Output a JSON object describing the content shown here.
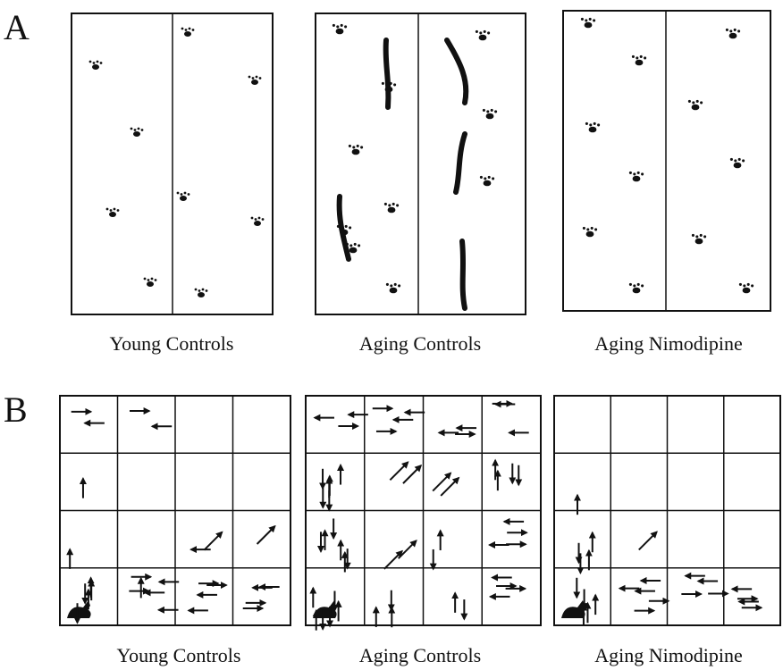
{
  "panels": [
    {
      "label": "A",
      "captions": [
        "Young Controls",
        "Aging Controls",
        "Aging Nimodipine"
      ]
    },
    {
      "label": "B",
      "captions": [
        "Young Controls",
        "Aging Controls",
        "Aging Nimodipine"
      ]
    }
  ]
}
